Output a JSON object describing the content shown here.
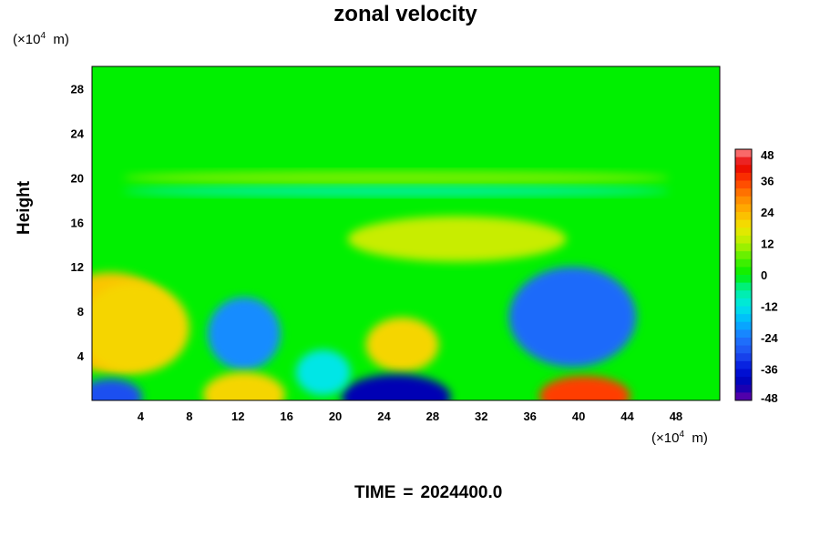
{
  "chart_data": {
    "type": "heatmap",
    "title": "zonal velocity",
    "ylabel": "Height",
    "xlabel": "",
    "x_unit": "(×10⁴ m)",
    "y_unit": "(×10⁴ m)",
    "unit_base": "×10",
    "unit_exp": "4",
    "unit_suffix": "m",
    "xlim": [
      0,
      51.6
    ],
    "ylim": [
      0,
      30
    ],
    "x_ticks": [
      4,
      8,
      12,
      16,
      20,
      24,
      28,
      32,
      36,
      40,
      44,
      48
    ],
    "y_ticks": [
      4,
      8,
      12,
      16,
      20,
      24,
      28
    ],
    "colorbar": {
      "min": -48,
      "max": 48,
      "ticks": [
        48,
        36,
        24,
        12,
        0,
        -12,
        -24,
        -36,
        -48
      ]
    },
    "features": [
      {
        "x": 1.5,
        "y": 7.0,
        "value": 22
      },
      {
        "x": 3.5,
        "y": 6.5,
        "value": 20
      },
      {
        "x": 12.5,
        "y": 6.0,
        "value": -22
      },
      {
        "x": 12.5,
        "y": 0.5,
        "value": 20
      },
      {
        "x": 25.5,
        "y": 5.0,
        "value": 20
      },
      {
        "x": 25.0,
        "y": 0.3,
        "value": -42
      },
      {
        "x": 39.5,
        "y": 7.5,
        "value": -26
      },
      {
        "x": 40.5,
        "y": 0.4,
        "value": 36
      },
      {
        "x": 1.5,
        "y": 0.3,
        "value": -30
      },
      {
        "x": 19.0,
        "y": 2.5,
        "value": -12
      },
      {
        "x": 30.0,
        "y": 14.5,
        "value": 14
      },
      {
        "x": 25.0,
        "y": 20.0,
        "value": 8
      },
      {
        "x": 25.0,
        "y": 18.8,
        "value": -6
      }
    ]
  },
  "footer": {
    "label": "TIME",
    "equals": "=",
    "value": "2024400.0"
  }
}
